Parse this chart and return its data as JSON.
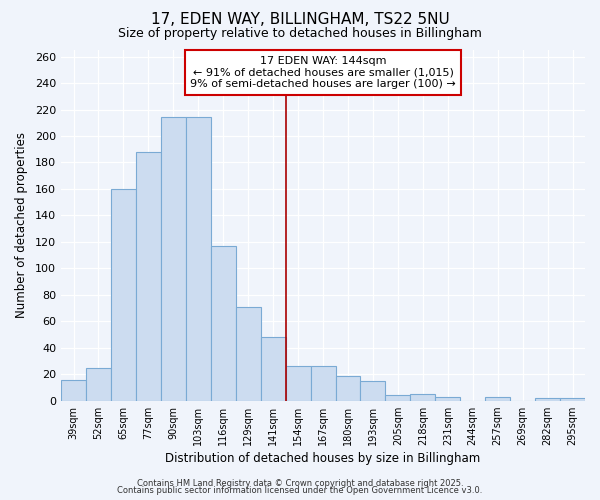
{
  "title1": "17, EDEN WAY, BILLINGHAM, TS22 5NU",
  "title2": "Size of property relative to detached houses in Billingham",
  "xlabel": "Distribution of detached houses by size in Billingham",
  "ylabel": "Number of detached properties",
  "categories": [
    "39sqm",
    "52sqm",
    "65sqm",
    "77sqm",
    "90sqm",
    "103sqm",
    "116sqm",
    "129sqm",
    "141sqm",
    "154sqm",
    "167sqm",
    "180sqm",
    "193sqm",
    "205sqm",
    "218sqm",
    "231sqm",
    "244sqm",
    "257sqm",
    "269sqm",
    "282sqm",
    "295sqm"
  ],
  "values": [
    16,
    25,
    160,
    188,
    214,
    214,
    117,
    71,
    48,
    26,
    26,
    19,
    15,
    4,
    5,
    3,
    0,
    3,
    0,
    2,
    2
  ],
  "bar_color": "#ccdcf0",
  "bar_edge_color": "#7aaad4",
  "bg_color": "#f0f4fb",
  "plot_bg_color": "#f0f4fb",
  "grid_color": "#ffffff",
  "vline_x": 8.5,
  "vline_color": "#aa0000",
  "annotation_text": "17 EDEN WAY: 144sqm\n← 91% of detached houses are smaller (1,015)\n9% of semi-detached houses are larger (100) →",
  "annotation_box_color": "#ffffff",
  "annotation_border_color": "#cc0000",
  "ylim": [
    0,
    265
  ],
  "yticks": [
    0,
    20,
    40,
    60,
    80,
    100,
    120,
    140,
    160,
    180,
    200,
    220,
    240,
    260
  ],
  "footer1": "Contains HM Land Registry data © Crown copyright and database right 2025.",
  "footer2": "Contains public sector information licensed under the Open Government Licence v3.0."
}
